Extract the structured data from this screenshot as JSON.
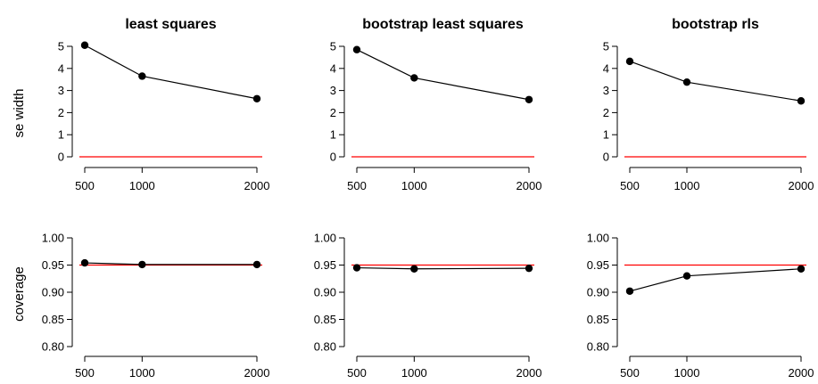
{
  "row_labels": [
    "se width",
    "coverage"
  ],
  "chart_data": [
    {
      "type": "line",
      "title": "least squares",
      "ylabel": "se width",
      "x": [
        500,
        1000,
        2000
      ],
      "series": [
        {
          "values": [
            5.05,
            3.65,
            2.63
          ]
        }
      ],
      "reference_line": 0,
      "ylim": [
        0,
        5
      ],
      "yticks": [
        "0",
        "1",
        "2",
        "3",
        "4",
        "5"
      ],
      "xticks": [
        "500",
        "1000",
        "2000"
      ],
      "colors": {
        "line": "#000000",
        "reference": "#ff0000"
      }
    },
    {
      "type": "line",
      "title": "bootstrap least squares",
      "ylabel": "",
      "x": [
        500,
        1000,
        2000
      ],
      "series": [
        {
          "values": [
            4.85,
            3.57,
            2.59
          ]
        }
      ],
      "reference_line": 0,
      "ylim": [
        0,
        5
      ],
      "yticks": [
        "0",
        "1",
        "2",
        "3",
        "4",
        "5"
      ],
      "xticks": [
        "500",
        "1000",
        "2000"
      ],
      "colors": {
        "line": "#000000",
        "reference": "#ff0000"
      }
    },
    {
      "type": "line",
      "title": "bootstrap rls",
      "ylabel": "",
      "x": [
        500,
        1000,
        2000
      ],
      "series": [
        {
          "values": [
            4.32,
            3.38,
            2.53
          ]
        }
      ],
      "reference_line": 0,
      "ylim": [
        0,
        5
      ],
      "yticks": [
        "0",
        "1",
        "2",
        "3",
        "4",
        "5"
      ],
      "xticks": [
        "500",
        "1000",
        "2000"
      ],
      "colors": {
        "line": "#000000",
        "reference": "#ff0000"
      }
    },
    {
      "type": "line",
      "title": "",
      "ylabel": "coverage",
      "x": [
        500,
        1000,
        2000
      ],
      "series": [
        {
          "values": [
            0.954,
            0.951,
            0.951
          ]
        }
      ],
      "reference_line": 0.95,
      "ylim": [
        0.8,
        1.0
      ],
      "yticks": [
        "0.80",
        "0.85",
        "0.90",
        "0.95",
        "1.00"
      ],
      "xticks": [
        "500",
        "1000",
        "2000"
      ],
      "colors": {
        "line": "#000000",
        "reference": "#ff0000"
      }
    },
    {
      "type": "line",
      "title": "",
      "ylabel": "",
      "x": [
        500,
        1000,
        2000
      ],
      "series": [
        {
          "values": [
            0.945,
            0.943,
            0.944
          ]
        }
      ],
      "reference_line": 0.95,
      "ylim": [
        0.8,
        1.0
      ],
      "yticks": [
        "0.80",
        "0.85",
        "0.90",
        "0.95",
        "1.00"
      ],
      "xticks": [
        "500",
        "1000",
        "2000"
      ],
      "colors": {
        "line": "#000000",
        "reference": "#ff0000"
      }
    },
    {
      "type": "line",
      "title": "",
      "ylabel": "",
      "x": [
        500,
        1000,
        2000
      ],
      "series": [
        {
          "values": [
            0.902,
            0.93,
            0.943
          ]
        }
      ],
      "reference_line": 0.95,
      "ylim": [
        0.8,
        1.0
      ],
      "yticks": [
        "0.80",
        "0.85",
        "0.90",
        "0.95",
        "1.00"
      ],
      "xticks": [
        "500",
        "1000",
        "2000"
      ],
      "colors": {
        "line": "#000000",
        "reference": "#ff0000"
      }
    }
  ]
}
